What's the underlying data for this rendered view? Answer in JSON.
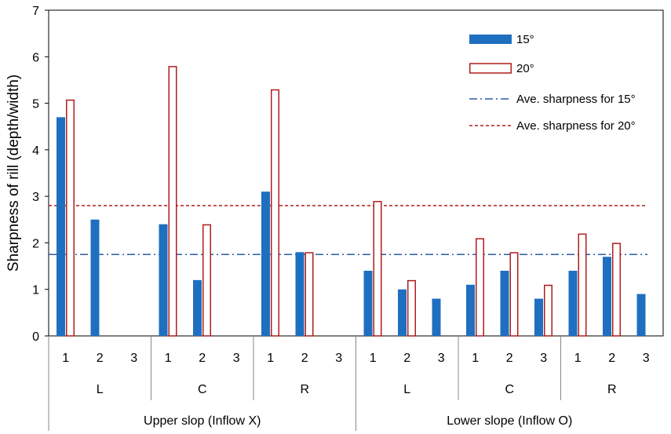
{
  "chart_data": {
    "type": "bar",
    "ylabel": "Sharpness of rill (depth/width)",
    "ylim": [
      0,
      7
    ],
    "yticks": [
      0,
      1,
      2,
      3,
      4,
      5,
      6,
      7
    ],
    "categories": [
      {
        "slope": "Upper slop (Inflow X)",
        "position": "L",
        "rill": "1"
      },
      {
        "slope": "Upper slop (Inflow X)",
        "position": "L",
        "rill": "2"
      },
      {
        "slope": "Upper slop (Inflow X)",
        "position": "L",
        "rill": "3"
      },
      {
        "slope": "Upper slop (Inflow X)",
        "position": "C",
        "rill": "1"
      },
      {
        "slope": "Upper slop (Inflow X)",
        "position": "C",
        "rill": "2"
      },
      {
        "slope": "Upper slop (Inflow X)",
        "position": "C",
        "rill": "3"
      },
      {
        "slope": "Upper slop (Inflow X)",
        "position": "R",
        "rill": "1"
      },
      {
        "slope": "Upper slop (Inflow X)",
        "position": "R",
        "rill": "2"
      },
      {
        "slope": "Upper slop (Inflow X)",
        "position": "R",
        "rill": "3"
      },
      {
        "slope": "Lower slope (Inflow O)",
        "position": "L",
        "rill": "1"
      },
      {
        "slope": "Lower slope (Inflow O)",
        "position": "L",
        "rill": "2"
      },
      {
        "slope": "Lower slope (Inflow O)",
        "position": "L",
        "rill": "3"
      },
      {
        "slope": "Lower slope (Inflow O)",
        "position": "C",
        "rill": "1"
      },
      {
        "slope": "Lower slope (Inflow O)",
        "position": "C",
        "rill": "2"
      },
      {
        "slope": "Lower slope (Inflow O)",
        "position": "C",
        "rill": "3"
      },
      {
        "slope": "Lower slope (Inflow O)",
        "position": "R",
        "rill": "1"
      },
      {
        "slope": "Lower slope (Inflow O)",
        "position": "R",
        "rill": "2"
      },
      {
        "slope": "Lower slope (Inflow O)",
        "position": "R",
        "rill": "3"
      }
    ],
    "series": [
      {
        "name": "15°",
        "color": "#1F6FC0",
        "style": "filled",
        "values": [
          4.7,
          2.5,
          0,
          2.4,
          1.2,
          0,
          3.1,
          1.8,
          0,
          1.4,
          1.0,
          0.8,
          1.1,
          1.4,
          0.8,
          1.4,
          1.7,
          0.9
        ]
      },
      {
        "name": "20°",
        "color": "#B01C1C",
        "style": "outline",
        "values": [
          5.08,
          0,
          0,
          5.8,
          2.4,
          0,
          5.3,
          1.8,
          0,
          2.9,
          1.2,
          0,
          2.1,
          1.8,
          1.1,
          2.2,
          2.0,
          0
        ]
      }
    ],
    "reference_lines": [
      {
        "name": "Ave. sharpness for 15°",
        "value": 1.75,
        "color": "#2E5AA8",
        "style": "dash-dot"
      },
      {
        "name": "Ave. sharpness for 20°",
        "value": 2.8,
        "color": "#B01C1C",
        "style": "dashed"
      }
    ],
    "legend_position": "top-right",
    "grid": false
  }
}
